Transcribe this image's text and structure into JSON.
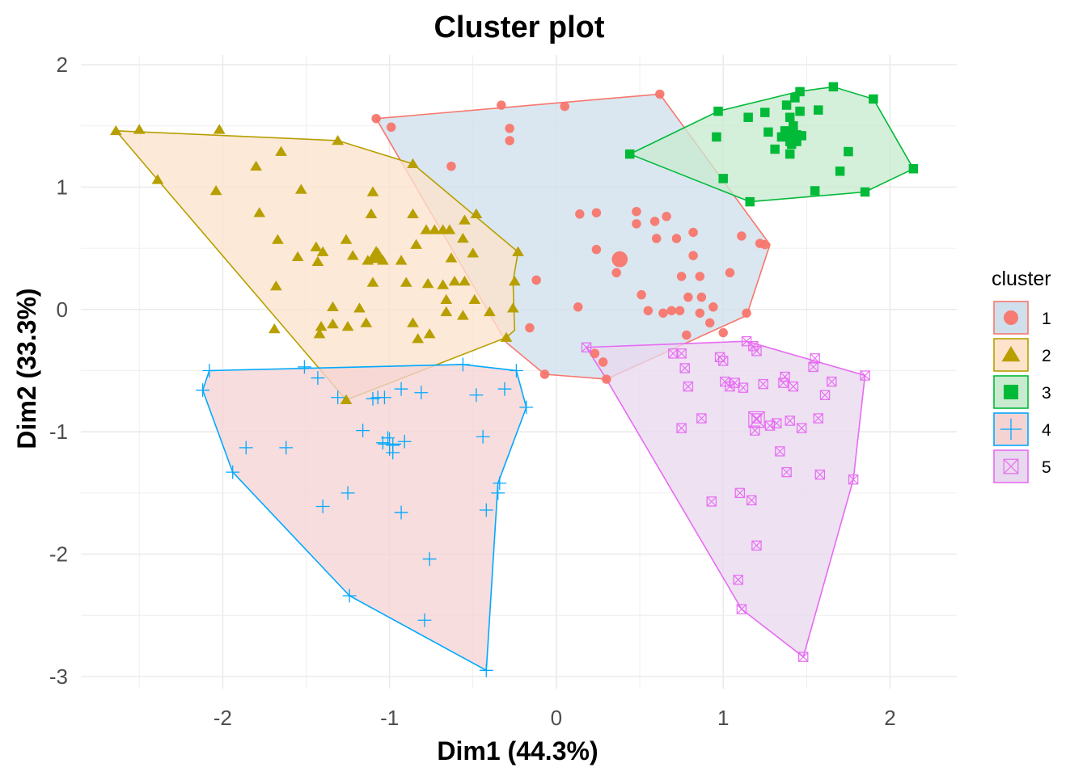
{
  "chart_data": {
    "type": "scatter",
    "title": "Cluster plot",
    "xlabel": "Dim1 (44.3%)",
    "ylabel": "Dim2 (33.3%)",
    "xlim": [
      -2.85,
      2.4
    ],
    "ylim": [
      -3.1,
      2.08
    ],
    "xticks": [
      -2,
      -1,
      0,
      1,
      2
    ],
    "yticks": [
      -3,
      -2,
      -1,
      0,
      1,
      2
    ],
    "grid": true,
    "legend": {
      "title": "cluster",
      "position": "right"
    },
    "series": [
      {
        "name": "1",
        "marker": "circle",
        "color": "#F8766D",
        "fill": "#cfe0ec",
        "hull": [
          [
            -1.08,
            1.56
          ],
          [
            0.62,
            1.76
          ],
          [
            1.28,
            0.53
          ],
          [
            1.14,
            -0.05
          ],
          [
            0.3,
            -0.57
          ],
          [
            -0.07,
            -0.53
          ],
          [
            -0.3,
            -0.27
          ],
          [
            -1.08,
            1.56
          ]
        ],
        "centroid": [
          0.38,
          0.41
        ],
        "points": [
          [
            -1.08,
            1.56
          ],
          [
            -0.99,
            1.49
          ],
          [
            -0.33,
            1.67
          ],
          [
            0.05,
            1.66
          ],
          [
            0.62,
            1.76
          ],
          [
            -0.28,
            1.48
          ],
          [
            -0.28,
            1.38
          ],
          [
            -0.63,
            1.17
          ],
          [
            0.14,
            0.78
          ],
          [
            0.24,
            0.79
          ],
          [
            0.48,
            0.8
          ],
          [
            0.66,
            0.76
          ],
          [
            0.48,
            0.7
          ],
          [
            0.59,
            0.72
          ],
          [
            0.24,
            0.49
          ],
          [
            0.6,
            0.58
          ],
          [
            0.72,
            0.58
          ],
          [
            0.82,
            0.63
          ],
          [
            0.82,
            0.44
          ],
          [
            1.11,
            0.6
          ],
          [
            1.25,
            0.53
          ],
          [
            1.22,
            0.54
          ],
          [
            -0.12,
            0.24
          ],
          [
            0.36,
            0.3
          ],
          [
            0.75,
            0.27
          ],
          [
            0.86,
            0.27
          ],
          [
            1.04,
            0.3
          ],
          [
            0.51,
            0.12
          ],
          [
            0.79,
            0.1
          ],
          [
            0.87,
            0.1
          ],
          [
            0.13,
            0.02
          ],
          [
            0.55,
            -0.01
          ],
          [
            0.64,
            -0.03
          ],
          [
            0.69,
            -0.01
          ],
          [
            0.74,
            -0.01
          ],
          [
            0.94,
            0.02
          ],
          [
            0.86,
            -0.03
          ],
          [
            0.92,
            -0.11
          ],
          [
            1.14,
            -0.03
          ],
          [
            1.0,
            -0.19
          ],
          [
            -0.16,
            -0.15
          ],
          [
            0.78,
            -0.21
          ],
          [
            0.23,
            -0.36
          ],
          [
            0.28,
            -0.43
          ],
          [
            0.3,
            -0.57
          ],
          [
            -0.07,
            -0.53
          ]
        ]
      },
      {
        "name": "2",
        "marker": "triangle",
        "color": "#B79F00",
        "fill": "#fde3cc",
        "hull": [
          [
            -2.64,
            1.46
          ],
          [
            -1.31,
            1.38
          ],
          [
            -0.86,
            1.19
          ],
          [
            -0.23,
            0.47
          ],
          [
            -0.26,
            0.23
          ],
          [
            -0.25,
            -0.17
          ],
          [
            -0.3,
            -0.23
          ],
          [
            -1.26,
            -0.74
          ],
          [
            -2.39,
            1.06
          ],
          [
            -2.64,
            1.46
          ]
        ],
        "centroid": [
          -1.08,
          0.44
        ],
        "points": [
          [
            -2.64,
            1.46
          ],
          [
            -2.5,
            1.47
          ],
          [
            -2.02,
            1.47
          ],
          [
            -1.31,
            1.38
          ],
          [
            -2.39,
            1.06
          ],
          [
            -1.65,
            1.29
          ],
          [
            -1.8,
            1.17
          ],
          [
            -0.86,
            1.19
          ],
          [
            -2.04,
            0.97
          ],
          [
            -1.53,
            0.98
          ],
          [
            -1.1,
            0.96
          ],
          [
            -1.78,
            0.79
          ],
          [
            -1.11,
            0.78
          ],
          [
            -0.86,
            0.78
          ],
          [
            -0.55,
            0.73
          ],
          [
            -0.48,
            0.78
          ],
          [
            -1.67,
            0.57
          ],
          [
            -1.26,
            0.57
          ],
          [
            -0.78,
            0.65
          ],
          [
            -0.73,
            0.65
          ],
          [
            -0.68,
            0.65
          ],
          [
            -0.64,
            0.65
          ],
          [
            -0.56,
            0.58
          ],
          [
            -1.44,
            0.51
          ],
          [
            -1.4,
            0.47
          ],
          [
            -0.84,
            0.53
          ],
          [
            -0.23,
            0.47
          ],
          [
            -1.55,
            0.43
          ],
          [
            -1.43,
            0.39
          ],
          [
            -1.22,
            0.44
          ],
          [
            -1.13,
            0.4
          ],
          [
            -1.07,
            0.46
          ],
          [
            -1.04,
            0.4
          ],
          [
            -0.93,
            0.4
          ],
          [
            -0.63,
            0.42
          ],
          [
            -0.5,
            0.46
          ],
          [
            -1.68,
            0.19
          ],
          [
            -1.1,
            0.22
          ],
          [
            -0.9,
            0.22
          ],
          [
            -0.77,
            0.21
          ],
          [
            -0.68,
            0.2
          ],
          [
            -0.61,
            0.23
          ],
          [
            -0.55,
            0.23
          ],
          [
            -0.25,
            0.23
          ],
          [
            -1.34,
            0.02
          ],
          [
            -1.18,
            0.01
          ],
          [
            -0.66,
            0.08
          ],
          [
            -0.49,
            0.08
          ],
          [
            -0.26,
            0.01
          ],
          [
            -1.41,
            -0.14
          ],
          [
            -1.34,
            -0.12
          ],
          [
            -1.25,
            -0.14
          ],
          [
            -1.14,
            -0.11
          ],
          [
            -0.86,
            -0.11
          ],
          [
            -0.66,
            -0.02
          ],
          [
            -0.56,
            -0.05
          ],
          [
            -0.4,
            -0.02
          ],
          [
            -1.69,
            -0.16
          ],
          [
            -1.42,
            -0.2
          ],
          [
            -0.83,
            -0.24
          ],
          [
            -0.76,
            -0.2
          ],
          [
            -0.3,
            -0.23
          ],
          [
            -1.26,
            -0.74
          ]
        ]
      },
      {
        "name": "3",
        "marker": "square",
        "color": "#00BA38",
        "fill": "#c8ebd0",
        "hull": [
          [
            0.44,
            1.27
          ],
          [
            0.97,
            1.62
          ],
          [
            1.45,
            1.78
          ],
          [
            1.66,
            1.82
          ],
          [
            1.9,
            1.72
          ],
          [
            2.14,
            1.15
          ],
          [
            1.85,
            0.96
          ],
          [
            1.16,
            0.88
          ],
          [
            0.44,
            1.27
          ]
        ],
        "centroid": [
          1.42,
          1.4
        ],
        "points": [
          [
            0.44,
            1.27
          ],
          [
            0.97,
            1.62
          ],
          [
            1.15,
            1.57
          ],
          [
            1.25,
            1.61
          ],
          [
            1.38,
            1.67
          ],
          [
            1.43,
            1.73
          ],
          [
            1.46,
            1.78
          ],
          [
            1.66,
            1.82
          ],
          [
            1.9,
            1.72
          ],
          [
            1.46,
            1.62
          ],
          [
            1.57,
            1.63
          ],
          [
            1.4,
            1.57
          ],
          [
            1.27,
            1.45
          ],
          [
            1.37,
            1.46
          ],
          [
            1.42,
            1.5
          ],
          [
            1.47,
            1.42
          ],
          [
            0.96,
            1.41
          ],
          [
            1.35,
            1.41
          ],
          [
            1.41,
            1.35
          ],
          [
            1.44,
            1.38
          ],
          [
            1.31,
            1.31
          ],
          [
            1.75,
            1.29
          ],
          [
            1.4,
            1.27
          ],
          [
            1.0,
            1.07
          ],
          [
            1.7,
            1.13
          ],
          [
            2.14,
            1.15
          ],
          [
            1.55,
            0.97
          ],
          [
            1.85,
            0.96
          ],
          [
            1.16,
            0.88
          ]
        ]
      },
      {
        "name": "4",
        "marker": "cross",
        "color": "#00A9FF",
        "fill": "#f5d3d3",
        "hull": [
          [
            -2.12,
            -0.66
          ],
          [
            -2.08,
            -0.5
          ],
          [
            -0.56,
            -0.45
          ],
          [
            -0.24,
            -0.5
          ],
          [
            -0.18,
            -0.8
          ],
          [
            -0.35,
            -1.42
          ],
          [
            -0.42,
            -2.95
          ],
          [
            -1.24,
            -2.34
          ],
          [
            -1.94,
            -1.33
          ],
          [
            -2.12,
            -0.66
          ]
        ],
        "centroid": [
          -1.0,
          -1.1
        ],
        "points": [
          [
            -2.12,
            -0.66
          ],
          [
            -2.08,
            -0.5
          ],
          [
            -1.51,
            -0.47
          ],
          [
            -1.43,
            -0.56
          ],
          [
            -0.56,
            -0.45
          ],
          [
            -0.24,
            -0.5
          ],
          [
            -1.31,
            -0.72
          ],
          [
            -1.03,
            -0.72
          ],
          [
            -1.07,
            -0.72
          ],
          [
            -1.1,
            -0.73
          ],
          [
            -0.93,
            -0.65
          ],
          [
            -0.81,
            -0.68
          ],
          [
            -0.48,
            -0.7
          ],
          [
            -0.31,
            -0.65
          ],
          [
            -0.18,
            -0.8
          ],
          [
            -1.16,
            -0.99
          ],
          [
            -1.01,
            -1.05
          ],
          [
            -1.04,
            -1.09
          ],
          [
            -0.98,
            -1.11
          ],
          [
            -0.91,
            -1.08
          ],
          [
            -1.86,
            -1.13
          ],
          [
            -1.62,
            -1.13
          ],
          [
            -0.44,
            -1.04
          ],
          [
            -0.98,
            -1.17
          ],
          [
            -1.94,
            -1.33
          ],
          [
            -0.34,
            -1.42
          ],
          [
            -1.25,
            -1.5
          ],
          [
            -0.35,
            -1.5
          ],
          [
            -1.4,
            -1.61
          ],
          [
            -0.42,
            -1.64
          ],
          [
            -0.93,
            -1.66
          ],
          [
            -0.76,
            -2.04
          ],
          [
            -1.24,
            -2.34
          ],
          [
            -0.79,
            -2.54
          ],
          [
            -0.42,
            -2.95
          ]
        ]
      },
      {
        "name": "5",
        "marker": "square-cross",
        "color": "#E76BF3",
        "fill": "#e8d9ee",
        "hull": [
          [
            0.18,
            -0.31
          ],
          [
            1.14,
            -0.26
          ],
          [
            1.85,
            -0.54
          ],
          [
            1.78,
            -1.39
          ],
          [
            1.48,
            -2.84
          ],
          [
            1.11,
            -2.45
          ],
          [
            0.3,
            -0.57
          ],
          [
            0.18,
            -0.31
          ]
        ],
        "centroid": [
          1.2,
          -0.9
        ],
        "points": [
          [
            0.18,
            -0.31
          ],
          [
            1.14,
            -0.26
          ],
          [
            1.18,
            -0.3
          ],
          [
            1.2,
            -0.34
          ],
          [
            0.7,
            -0.36
          ],
          [
            0.75,
            -0.36
          ],
          [
            0.98,
            -0.39
          ],
          [
            1.0,
            -0.42
          ],
          [
            1.55,
            -0.4
          ],
          [
            1.54,
            -0.47
          ],
          [
            1.37,
            -0.55
          ],
          [
            1.65,
            -0.59
          ],
          [
            1.85,
            -0.54
          ],
          [
            0.77,
            -0.48
          ],
          [
            0.79,
            -0.63
          ],
          [
            1.01,
            -0.59
          ],
          [
            1.07,
            -0.6
          ],
          [
            1.04,
            -0.63
          ],
          [
            1.12,
            -0.64
          ],
          [
            1.24,
            -0.61
          ],
          [
            1.36,
            -0.6
          ],
          [
            1.42,
            -0.63
          ],
          [
            1.61,
            -0.7
          ],
          [
            1.2,
            -0.89
          ],
          [
            1.4,
            -0.91
          ],
          [
            1.28,
            -0.95
          ],
          [
            1.32,
            -0.93
          ],
          [
            1.47,
            -0.97
          ],
          [
            1.57,
            -0.89
          ],
          [
            0.87,
            -0.89
          ],
          [
            0.75,
            -0.97
          ],
          [
            1.19,
            -0.99
          ],
          [
            1.34,
            -1.16
          ],
          [
            1.38,
            -1.33
          ],
          [
            1.58,
            -1.35
          ],
          [
            1.78,
            -1.39
          ],
          [
            1.1,
            -1.5
          ],
          [
            1.17,
            -1.56
          ],
          [
            0.93,
            -1.57
          ],
          [
            1.2,
            -1.93
          ],
          [
            1.09,
            -2.21
          ],
          [
            1.11,
            -2.45
          ],
          [
            1.48,
            -2.84
          ]
        ]
      }
    ]
  }
}
